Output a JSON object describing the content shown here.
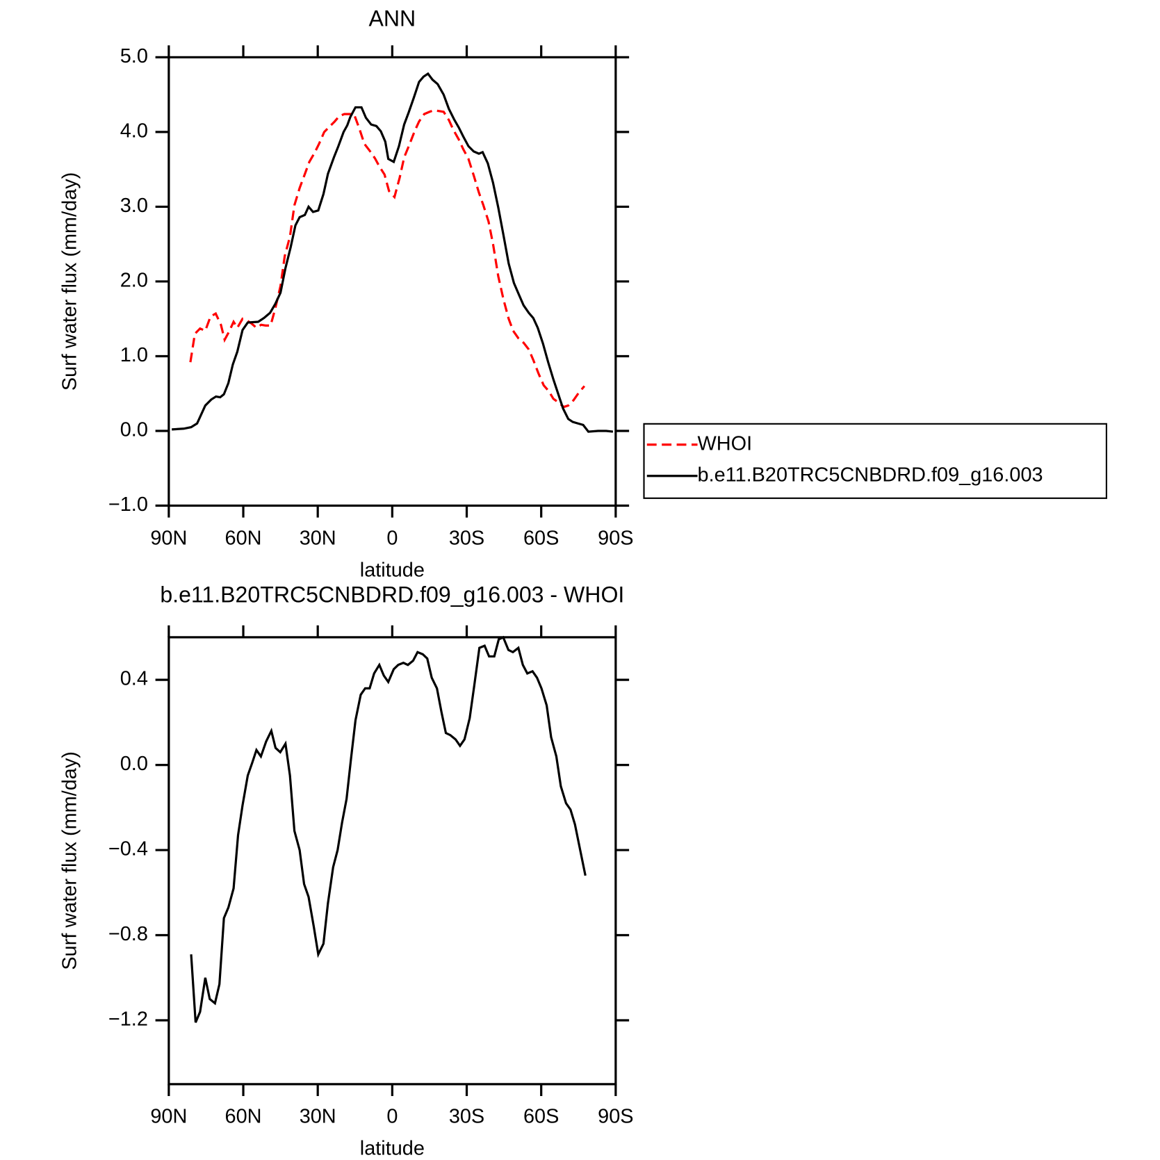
{
  "chart_data": [
    {
      "type": "line",
      "title": "ANN",
      "xlabel": "latitude",
      "ylabel": "Surf water flux (mm/day)",
      "xlim": [
        90,
        -90
      ],
      "xticks": [
        {
          "value": 90,
          "label": "90N"
        },
        {
          "value": 60,
          "label": "60N"
        },
        {
          "value": 30,
          "label": "30N"
        },
        0,
        {
          "value": -30,
          "label": "30S"
        },
        {
          "value": -60,
          "label": "60S"
        },
        {
          "value": -90,
          "label": "90S"
        }
      ],
      "ylim": [
        -1,
        5
      ],
      "yticks": [
        {
          "value": 5,
          "label": "5.0"
        },
        {
          "value": 4,
          "label": "4.0"
        },
        {
          "value": 3,
          "label": "3.0"
        },
        {
          "value": 2,
          "label": "2.0"
        },
        {
          "value": 1,
          "label": "1.0"
        },
        {
          "value": 0,
          "label": "0.0"
        },
        {
          "value": -1,
          "label": "−1.0"
        }
      ],
      "legend": "right",
      "series": [
        {
          "name": "WHOI",
          "color": "#ff0000",
          "dash": "dashed",
          "x": [
            81.3,
            79.5,
            77.4,
            75.3,
            73.2,
            71.1,
            69,
            67.5,
            65.7,
            63.9,
            62.4,
            60.3,
            58.2,
            56.8,
            54.7,
            52.8,
            51,
            49,
            47.1,
            45,
            43.3,
            41.2,
            39.4,
            37.3,
            35.5,
            33.4,
            31.3,
            29.5,
            27.4,
            25.3,
            23.2,
            21.4,
            19.3,
            15.4,
            13.3,
            11.2,
            9.1,
            7,
            5.2,
            3.1,
            1.3,
            -0.9,
            -3,
            -4.8,
            -6.9,
            -9,
            -10.8,
            -12.9,
            -15,
            -16.7,
            -18.9,
            -20.7,
            -22.8,
            -24.6,
            -26.8,
            -28.6,
            -30.7,
            -32.8,
            -34.9,
            -36.7,
            -38.8,
            -40.6,
            -42.7,
            -44.8,
            -46.9,
            -48.7,
            -50.8,
            -52.9,
            -55,
            -56.8,
            -58.9,
            -61,
            -63.1,
            -64.9,
            -67,
            -69.1,
            -70.9,
            -73,
            -75.1,
            -77.4
          ],
          "values": [
            0.92,
            1.3,
            1.37,
            1.34,
            1.53,
            1.57,
            1.42,
            1.22,
            1.33,
            1.46,
            1.38,
            1.5,
            1.47,
            1.44,
            1.38,
            1.42,
            1.41,
            1.41,
            1.64,
            1.94,
            2.34,
            2.6,
            3.02,
            3.25,
            3.41,
            3.6,
            3.72,
            3.84,
            4.0,
            4.07,
            4.14,
            4.21,
            4.24,
            4.24,
            4.05,
            3.84,
            3.75,
            3.65,
            3.54,
            3.43,
            3.21,
            3.13,
            3.39,
            3.66,
            3.83,
            4.01,
            4.14,
            4.24,
            4.27,
            4.29,
            4.28,
            4.27,
            4.16,
            4.03,
            3.9,
            3.77,
            3.64,
            3.42,
            3.19,
            3.02,
            2.8,
            2.5,
            2.07,
            1.76,
            1.5,
            1.34,
            1.24,
            1.18,
            1.09,
            0.95,
            0.77,
            0.61,
            0.53,
            0.43,
            0.38,
            0.32,
            0.34,
            0.41,
            0.51,
            0.6
          ]
        },
        {
          "name": "b.e11.B20TRC5CNBDRD.f09_g16.003",
          "color": "#000000",
          "dash": "solid",
          "x": [
            88.8,
            84,
            81,
            78.6,
            75.3,
            72.9,
            71,
            69.3,
            67.8,
            66,
            64.2,
            62.4,
            60.3,
            58.2,
            54,
            51.7,
            49.2,
            47.1,
            45,
            43,
            40.9,
            39,
            37.3,
            35.2,
            33.7,
            31.9,
            29.8,
            27.7,
            25.9,
            23.5,
            21.7,
            19.6,
            18.1,
            16.9,
            14.8,
            12.4,
            10.6,
            8.5,
            6.4,
            4.6,
            2.8,
            1.6,
            -0.6,
            -2.7,
            -4.8,
            -6.6,
            -8.7,
            -10.8,
            -12.6,
            -14.4,
            -16.2,
            -18.3,
            -20.7,
            -22.8,
            -24.9,
            -26.8,
            -28.6,
            -30.7,
            -32.8,
            -34.9,
            -36.4,
            -38.5,
            -40.6,
            -42.7,
            -44.8,
            -46.9,
            -49,
            -50.8,
            -52.9,
            -55,
            -56.8,
            -58.6,
            -60.7,
            -62.8,
            -64.9,
            -66.7,
            -68.8,
            -70.9,
            -72.7,
            -74.8,
            -76.9,
            -79,
            -82.9,
            -86.2,
            -88.9
          ],
          "values": [
            0.02,
            0.03,
            0.05,
            0.1,
            0.34,
            0.42,
            0.46,
            0.45,
            0.49,
            0.64,
            0.89,
            1.06,
            1.35,
            1.45,
            1.46,
            1.51,
            1.58,
            1.7,
            1.85,
            2.18,
            2.46,
            2.75,
            2.86,
            2.89,
            3.0,
            2.93,
            2.95,
            3.17,
            3.44,
            3.66,
            3.81,
            4.0,
            4.09,
            4.2,
            4.33,
            4.33,
            4.19,
            4.1,
            4.08,
            4.01,
            3.87,
            3.64,
            3.6,
            3.81,
            4.1,
            4.26,
            4.46,
            4.67,
            4.74,
            4.78,
            4.7,
            4.64,
            4.5,
            4.31,
            4.17,
            4.06,
            3.94,
            3.81,
            3.74,
            3.71,
            3.73,
            3.58,
            3.32,
            2.99,
            2.62,
            2.24,
            1.98,
            1.84,
            1.68,
            1.58,
            1.51,
            1.38,
            1.17,
            0.92,
            0.69,
            0.51,
            0.3,
            0.16,
            0.12,
            0.1,
            0.08,
            -0.01,
            0.0,
            0.0,
            -0.01
          ]
        }
      ]
    },
    {
      "type": "line",
      "title": "b.e11.B20TRC5CNBDRD.f09_g16.003 - WHOI",
      "xlabel": "latitude",
      "ylabel": "Surf water flux (mm/day)",
      "xlim": [
        90,
        -90
      ],
      "xticks": [
        {
          "value": 90,
          "label": "90N"
        },
        {
          "value": 60,
          "label": "60N"
        },
        {
          "value": 30,
          "label": "30N"
        },
        0,
        {
          "value": -30,
          "label": "30S"
        },
        {
          "value": -60,
          "label": "60S"
        },
        {
          "value": -90,
          "label": "90S"
        }
      ],
      "ylim": [
        -1.5,
        0.6
      ],
      "yticks": [
        0.4,
        {
          "value": 0,
          "label": "0.0"
        },
        {
          "value": -0.4,
          "label": "−0.4"
        },
        {
          "value": -0.8,
          "label": "−0.8"
        },
        {
          "value": -1.2,
          "label": "−1.2"
        }
      ],
      "color": "#000000",
      "x": [
        81,
        79.2,
        77.4,
        75.3,
        73.5,
        71.4,
        69.6,
        67.8,
        66,
        63.9,
        62.1,
        60.3,
        58.2,
        56.4,
        54.7,
        52.9,
        50.8,
        48.7,
        47,
        45.1,
        43,
        41.2,
        39.4,
        37.3,
        35.5,
        33.7,
        31.6,
        29.8,
        27.7,
        25.9,
        23.8,
        22,
        20.2,
        18.4,
        16.6,
        14.8,
        12.7,
        10.9,
        9.1,
        7.3,
        5.2,
        3.4,
        1.6,
        -0.6,
        -2.4,
        -4.5,
        -6.3,
        -8.4,
        -10.2,
        -12.3,
        -14.1,
        -15.9,
        -18,
        -19.8,
        -21.6,
        -23.4,
        -25.5,
        -27.3,
        -29.1,
        -31.2,
        -33,
        -35.1,
        -37.2,
        -39,
        -41.1,
        -42.9,
        -44.7,
        -46.8,
        -48.6,
        -50.8,
        -52.6,
        -54.4,
        -56.5,
        -58.3,
        -60.1,
        -62.2,
        -64,
        -66.1,
        -67.9,
        -70,
        -71.8,
        -73.6,
        -75.7,
        -77.8
      ],
      "values": [
        -0.89,
        -1.21,
        -1.16,
        -1.0,
        -1.1,
        -1.12,
        -1.03,
        -0.72,
        -0.67,
        -0.58,
        -0.33,
        -0.19,
        -0.05,
        0.01,
        0.07,
        0.04,
        0.11,
        0.16,
        0.08,
        0.06,
        0.1,
        -0.05,
        -0.31,
        -0.4,
        -0.56,
        -0.62,
        -0.76,
        -0.89,
        -0.84,
        -0.65,
        -0.48,
        -0.4,
        -0.27,
        -0.16,
        0.03,
        0.21,
        0.33,
        0.36,
        0.36,
        0.43,
        0.47,
        0.42,
        0.39,
        0.45,
        0.47,
        0.48,
        0.47,
        0.49,
        0.53,
        0.52,
        0.5,
        0.41,
        0.36,
        0.25,
        0.15,
        0.14,
        0.12,
        0.09,
        0.12,
        0.22,
        0.37,
        0.55,
        0.56,
        0.51,
        0.51,
        0.59,
        0.6,
        0.54,
        0.53,
        0.55,
        0.47,
        0.43,
        0.44,
        0.41,
        0.36,
        0.28,
        0.13,
        0.04,
        -0.1,
        -0.18,
        -0.21,
        -0.28,
        -0.4,
        -0.52
      ]
    }
  ]
}
